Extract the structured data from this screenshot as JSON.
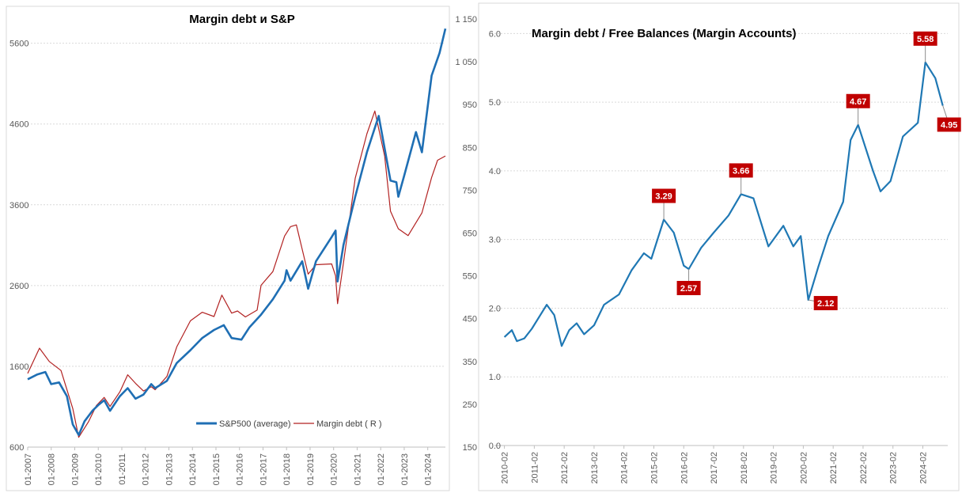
{
  "chart_data": [
    {
      "type": "line",
      "title": "Margin debt и S&P",
      "x_ticks": [
        "01-2007",
        "01-2008",
        "01-2009",
        "01-2010",
        "01-2011",
        "01-2012",
        "01-2013",
        "01-2014",
        "01-2015",
        "01-2016",
        "01-2017",
        "01-2018",
        "01-2019",
        "01-2020",
        "01-2021",
        "01-2022",
        "01-2023",
        "01-2024"
      ],
      "xlim": [
        "2007-01",
        "2024-10"
      ],
      "y_left_ticks": [
        "600",
        "1600",
        "2600",
        "3600",
        "4600",
        "5600"
      ],
      "ylim_left": [
        600,
        5900
      ],
      "y_right_ticks": [
        "150",
        "250",
        "350",
        "450",
        "550",
        "650",
        "750",
        "850",
        "950",
        "1 050",
        "1 150"
      ],
      "ylim_right": [
        150,
        1150
      ],
      "grid": true,
      "legend_position": "bottom-center",
      "series": [
        {
          "name": "S&P500 (average)",
          "axis": "left",
          "color": "#1f6fb4",
          "points": [
            [
              "2007-01",
              1440
            ],
            [
              "2007-06",
              1500
            ],
            [
              "2007-10",
              1530
            ],
            [
              "2008-01",
              1380
            ],
            [
              "2008-05",
              1400
            ],
            [
              "2008-09",
              1230
            ],
            [
              "2008-12",
              880
            ],
            [
              "2009-03",
              750
            ],
            [
              "2009-06",
              920
            ],
            [
              "2009-10",
              1050
            ],
            [
              "2010-01",
              1120
            ],
            [
              "2010-04",
              1180
            ],
            [
              "2010-07",
              1050
            ],
            [
              "2010-12",
              1230
            ],
            [
              "2011-04",
              1330
            ],
            [
              "2011-08",
              1200
            ],
            [
              "2011-12",
              1250
            ],
            [
              "2012-04",
              1380
            ],
            [
              "2012-06",
              1330
            ],
            [
              "2012-12",
              1420
            ],
            [
              "2013-05",
              1640
            ],
            [
              "2013-12",
              1800
            ],
            [
              "2014-06",
              1950
            ],
            [
              "2014-12",
              2050
            ],
            [
              "2015-05",
              2110
            ],
            [
              "2015-09",
              1950
            ],
            [
              "2016-02",
              1930
            ],
            [
              "2016-06",
              2080
            ],
            [
              "2016-12",
              2240
            ],
            [
              "2017-06",
              2430
            ],
            [
              "2017-12",
              2660
            ],
            [
              "2018-01",
              2790
            ],
            [
              "2018-03",
              2660
            ],
            [
              "2018-09",
              2900
            ],
            [
              "2018-12",
              2560
            ],
            [
              "2019-04",
              2900
            ],
            [
              "2019-12",
              3200
            ],
            [
              "2020-02",
              3280
            ],
            [
              "2020-03",
              2650
            ],
            [
              "2020-06",
              3100
            ],
            [
              "2020-12",
              3700
            ],
            [
              "2021-06",
              4250
            ],
            [
              "2021-12",
              4700
            ],
            [
              "2022-06",
              3900
            ],
            [
              "2022-09",
              3880
            ],
            [
              "2022-10",
              3700
            ],
            [
              "2023-01",
              3960
            ],
            [
              "2023-07",
              4500
            ],
            [
              "2023-10",
              4250
            ],
            [
              "2024-03",
              5200
            ],
            [
              "2024-07",
              5480
            ],
            [
              "2024-10",
              5780
            ]
          ]
        },
        {
          "name": "Margin debt ( R )",
          "axis": "right",
          "color": "#b22222",
          "points": [
            [
              "2007-01",
              322
            ],
            [
              "2007-07",
              381
            ],
            [
              "2007-12",
              350
            ],
            [
              "2008-06",
              329
            ],
            [
              "2008-12",
              240
            ],
            [
              "2009-03",
              173
            ],
            [
              "2009-08",
              209
            ],
            [
              "2009-12",
              247
            ],
            [
              "2010-04",
              266
            ],
            [
              "2010-07",
              245
            ],
            [
              "2010-12",
              279
            ],
            [
              "2011-04",
              319
            ],
            [
              "2011-08",
              299
            ],
            [
              "2011-12",
              281
            ],
            [
              "2012-04",
              291
            ],
            [
              "2012-06",
              284
            ],
            [
              "2012-12",
              315
            ],
            [
              "2013-05",
              384
            ],
            [
              "2013-12",
              445
            ],
            [
              "2014-06",
              465
            ],
            [
              "2014-12",
              455
            ],
            [
              "2015-04",
              505
            ],
            [
              "2015-09",
              463
            ],
            [
              "2015-12",
              468
            ],
            [
              "2016-04",
              454
            ],
            [
              "2016-10",
              470
            ],
            [
              "2016-12",
              528
            ],
            [
              "2017-06",
              560
            ],
            [
              "2017-12",
              643
            ],
            [
              "2018-03",
              665
            ],
            [
              "2018-06",
              669
            ],
            [
              "2018-12",
              554
            ],
            [
              "2019-04",
              576
            ],
            [
              "2019-12",
              578
            ],
            [
              "2020-02",
              550
            ],
            [
              "2020-03",
              485
            ],
            [
              "2020-06",
              580
            ],
            [
              "2020-12",
              778
            ],
            [
              "2021-06",
              882
            ],
            [
              "2021-10",
              935
            ],
            [
              "2022-03",
              830
            ],
            [
              "2022-06",
              701
            ],
            [
              "2022-10",
              660
            ],
            [
              "2023-03",
              644
            ],
            [
              "2023-10",
              697
            ],
            [
              "2024-03",
              780
            ],
            [
              "2024-06",
              820
            ],
            [
              "2024-10",
              830
            ]
          ]
        }
      ]
    },
    {
      "type": "line",
      "title": "Margin debt / Free Balances (Margin Accounts)",
      "x_ticks": [
        "2010-02",
        "2011-02",
        "2012-02",
        "2013-02",
        "2014-02",
        "2015-02",
        "2016-02",
        "2017-02",
        "2018-02",
        "2019-02",
        "2020-02",
        "2021-02",
        "2022-02",
        "2023-02",
        "2024-02"
      ],
      "xlim": [
        "2009-10",
        "2024-12"
      ],
      "y_ticks": [
        "0.0",
        "1.0",
        "2.0",
        "3.0",
        "4.0",
        "5.0",
        "6.0"
      ],
      "ylim": [
        0,
        6.2
      ],
      "grid": true,
      "series": [
        {
          "color": "#1f78b4",
          "points": [
            [
              "2010-02",
              1.58
            ],
            [
              "2010-05",
              1.68
            ],
            [
              "2010-07",
              1.52
            ],
            [
              "2010-10",
              1.56
            ],
            [
              "2011-01",
              1.7
            ],
            [
              "2011-07",
              2.05
            ],
            [
              "2011-10",
              1.9
            ],
            [
              "2012-01",
              1.45
            ],
            [
              "2012-04",
              1.68
            ],
            [
              "2012-07",
              1.78
            ],
            [
              "2012-10",
              1.62
            ],
            [
              "2013-02",
              1.75
            ],
            [
              "2013-06",
              2.05
            ],
            [
              "2013-12",
              2.2
            ],
            [
              "2014-05",
              2.55
            ],
            [
              "2014-10",
              2.8
            ],
            [
              "2015-01",
              2.72
            ],
            [
              "2015-06",
              3.29
            ],
            [
              "2015-10",
              3.1
            ],
            [
              "2016-02",
              2.62
            ],
            [
              "2016-04",
              2.57
            ],
            [
              "2016-09",
              2.88
            ],
            [
              "2017-02",
              3.1
            ],
            [
              "2017-08",
              3.35
            ],
            [
              "2018-01",
              3.66
            ],
            [
              "2018-06",
              3.6
            ],
            [
              "2018-12",
              2.9
            ],
            [
              "2019-06",
              3.2
            ],
            [
              "2019-10",
              2.9
            ],
            [
              "2020-01",
              3.05
            ],
            [
              "2020-04",
              2.12
            ],
            [
              "2020-08",
              2.6
            ],
            [
              "2020-12",
              3.05
            ],
            [
              "2021-06",
              3.55
            ],
            [
              "2021-09",
              4.45
            ],
            [
              "2021-12",
              4.67
            ],
            [
              "2022-06",
              4.0
            ],
            [
              "2022-09",
              3.7
            ],
            [
              "2023-01",
              3.85
            ],
            [
              "2023-06",
              4.5
            ],
            [
              "2023-12",
              4.7
            ],
            [
              "2024-03",
              5.58
            ],
            [
              "2024-07",
              5.35
            ],
            [
              "2024-10",
              4.95
            ]
          ]
        }
      ],
      "annotations": [
        {
          "date": "2015-06",
          "value": 3.29,
          "label": "3.29",
          "placement": "above"
        },
        {
          "date": "2016-04",
          "value": 2.57,
          "label": "2.57",
          "placement": "below"
        },
        {
          "date": "2018-01",
          "value": 3.66,
          "label": "3.66",
          "placement": "above"
        },
        {
          "date": "2020-04",
          "value": 2.12,
          "label": "2.12",
          "placement": "right"
        },
        {
          "date": "2021-12",
          "value": 4.67,
          "label": "4.67",
          "placement": "above"
        },
        {
          "date": "2024-03",
          "value": 5.58,
          "label": "5.58",
          "placement": "above"
        },
        {
          "date": "2024-10",
          "value": 4.95,
          "label": "4.95",
          "placement": "below"
        }
      ]
    }
  ],
  "colors": {
    "grid": "#d9d9d9",
    "axis": "#bfbfbf",
    "callout_bg": "#c00000"
  }
}
